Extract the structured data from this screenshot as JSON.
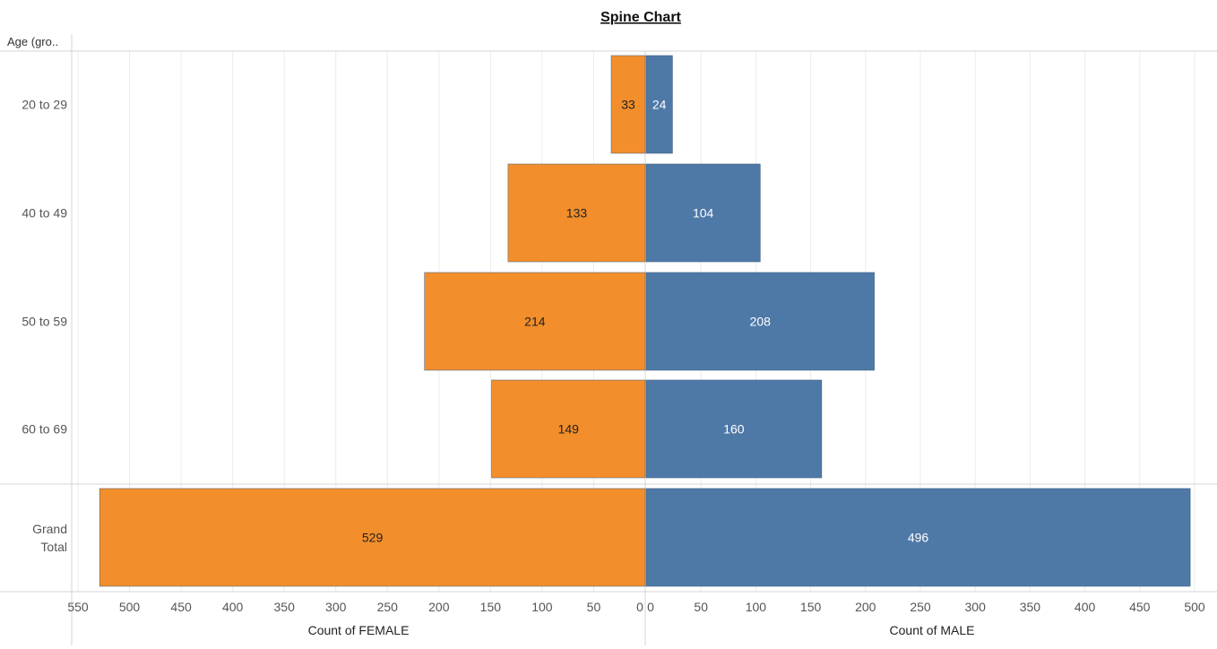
{
  "chart_data": {
    "type": "bar",
    "title": "Spine Chart",
    "row_header": "Age (gro..",
    "categories": [
      "20 to 29",
      "40 to 49",
      "50 to 59",
      "60 to 69"
    ],
    "grand_total_label": [
      "Grand",
      "Total"
    ],
    "series": [
      {
        "name": "Count of FEMALE",
        "values": [
          33,
          133,
          214,
          149
        ],
        "grand_total": 529,
        "color": "#f28e2b",
        "direction": "left"
      },
      {
        "name": "Count of MALE",
        "values": [
          24,
          104,
          208,
          160
        ],
        "grand_total": 496,
        "color": "#4e79a7",
        "direction": "right"
      }
    ],
    "left_axis": {
      "label": "Count of FEMALE",
      "ticks": [
        550,
        500,
        450,
        400,
        350,
        300,
        250,
        200,
        150,
        100,
        50,
        0
      ],
      "range": [
        0,
        550
      ]
    },
    "right_axis": {
      "label": "Count of MALE",
      "ticks": [
        0,
        50,
        100,
        150,
        200,
        250,
        300,
        350,
        400,
        450,
        500
      ],
      "range": [
        0,
        500
      ]
    },
    "grid": true
  }
}
